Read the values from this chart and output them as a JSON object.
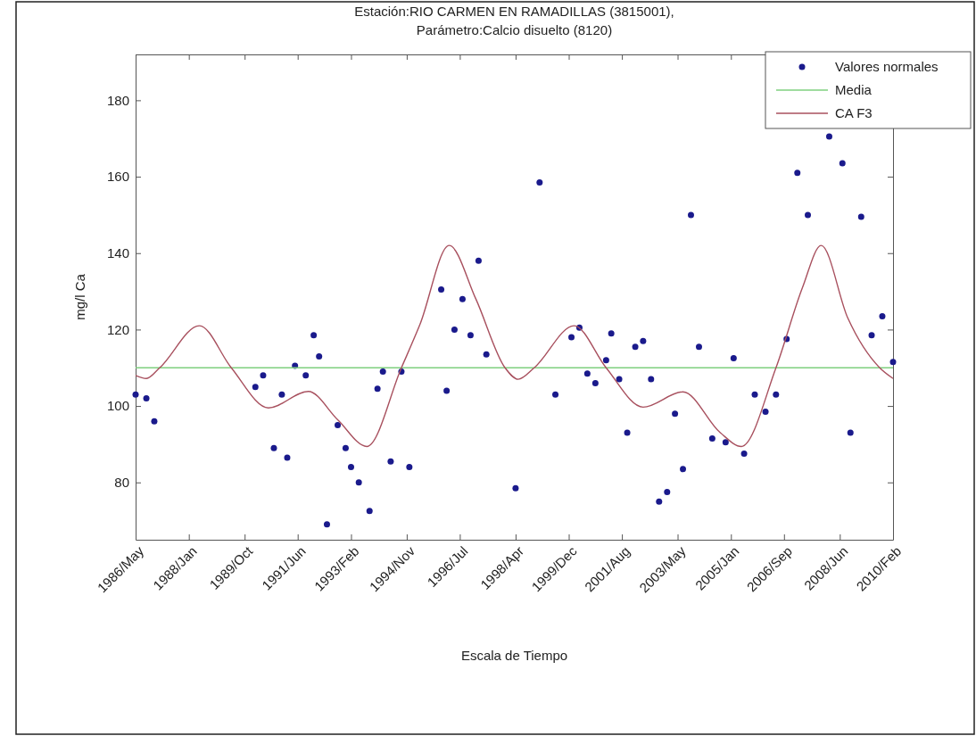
{
  "chart_data": {
    "type": "scatter",
    "title": "Estación:RIO CARMEN EN RAMADILLAS (3815001),",
    "subtitle": "Parámetro:Calcio disuelto (8120)",
    "xlabel": "Escala de Tiempo",
    "ylabel": "mg/l Ca",
    "xlim": [
      "1986-05",
      "2010-02"
    ],
    "xticks": [
      {
        "value": "1986-05",
        "label": "1986/May"
      },
      {
        "value": "1988-01",
        "label": "1988/Jan"
      },
      {
        "value": "1989-10",
        "label": "1989/Oct"
      },
      {
        "value": "1991-06",
        "label": "1991/Jun"
      },
      {
        "value": "1993-02",
        "label": "1993/Feb"
      },
      {
        "value": "1994-11",
        "label": "1994/Nov"
      },
      {
        "value": "1996-07",
        "label": "1996/Jul"
      },
      {
        "value": "1998-04",
        "label": "1998/Apr"
      },
      {
        "value": "1999-12",
        "label": "1999/Dec"
      },
      {
        "value": "2001-08",
        "label": "2001/Aug"
      },
      {
        "value": "2003-05",
        "label": "2003/May"
      },
      {
        "value": "2005-01",
        "label": "2005/Jan"
      },
      {
        "value": "2006-09",
        "label": "2006/Sep"
      },
      {
        "value": "2008-06",
        "label": "2008/Jun"
      },
      {
        "value": "2010-02",
        "label": "2010/Feb"
      }
    ],
    "ylim": [
      65,
      192
    ],
    "yticks": [
      80,
      100,
      120,
      140,
      160,
      180
    ],
    "grid": false,
    "legend": "top right",
    "series": [
      {
        "name": "Valores normales",
        "type": "scatter",
        "marker": "circle",
        "color": "#1a1a8c",
        "x": [
          "1986-05",
          "1986-09",
          "1986-12",
          "1990-02",
          "1990-05",
          "1990-09",
          "1990-12",
          "1991-02",
          "1991-05",
          "1991-09",
          "1991-12",
          "1992-02",
          "1992-05",
          "1992-09",
          "1992-12",
          "1993-02",
          "1993-05",
          "1993-09",
          "1993-12",
          "1994-02",
          "1994-05",
          "1994-09",
          "1994-12",
          "1995-12",
          "1996-02",
          "1996-05",
          "1996-08",
          "1996-11",
          "1997-02",
          "1997-05",
          "1998-04",
          "1999-01",
          "1999-07",
          "2000-01",
          "2000-04",
          "2000-07",
          "2000-10",
          "2001-02",
          "2001-04",
          "2001-07",
          "2001-10",
          "2002-01",
          "2002-04",
          "2002-07",
          "2002-10",
          "2003-01",
          "2003-04",
          "2003-07",
          "2003-10",
          "2004-01",
          "2004-06",
          "2004-11",
          "2005-02",
          "2005-06",
          "2005-10",
          "2006-02",
          "2006-06",
          "2006-10",
          "2007-02",
          "2007-06",
          "2008-02",
          "2008-07",
          "2008-10",
          "2009-02",
          "2009-06",
          "2009-10",
          "2010-02"
        ],
        "values": [
          103,
          102,
          96,
          105,
          108,
          89,
          103,
          86.5,
          110.5,
          108,
          118.5,
          113,
          69,
          95,
          89,
          84,
          80,
          72.5,
          104.5,
          109,
          85.5,
          109,
          84,
          130.5,
          104,
          120,
          128,
          118.5,
          138,
          113.5,
          78.5,
          158.5,
          103,
          118,
          120.5,
          108.5,
          106,
          112,
          119,
          107,
          93,
          115.5,
          117,
          107,
          75,
          77.5,
          98,
          83.5,
          150,
          115.5,
          91.5,
          90.5,
          112.5,
          87.5,
          103,
          98.5,
          103,
          117.5,
          161,
          150,
          170.5,
          163.5,
          93,
          149.5,
          118.5,
          123.5,
          111.5
        ]
      },
      {
        "name": "Media",
        "type": "line",
        "marker": "none",
        "line_style": "solid",
        "color": "#7fd07f",
        "x": [
          "1986-05",
          "2010-02"
        ],
        "values": [
          110,
          110
        ]
      },
      {
        "name": "CA F3",
        "type": "line",
        "marker": "none",
        "line_style": "solid",
        "color": "#a8505e",
        "x": [
          "1986-05",
          "1986-09",
          "1987-02",
          "1988-05",
          "1989-05",
          "1990-07",
          "1991-10",
          "1992-09",
          "1993-08",
          "1994-09",
          "1995-04",
          "1996-03",
          "1997-01",
          "1997-12",
          "1998-05",
          "1998-11",
          "2000-02",
          "2001-02",
          "2002-04",
          "2003-07",
          "2004-09",
          "2005-05",
          "2006-06",
          "2007-04",
          "2007-11",
          "2008-09",
          "2009-09",
          "2010-02"
        ],
        "values": [
          108,
          107.2,
          110,
          121,
          110,
          99.5,
          103.8,
          96.4,
          89.4,
          110,
          121.3,
          142,
          128,
          110,
          107,
          110,
          121,
          110,
          99.7,
          103.7,
          93,
          89.4,
          110,
          131,
          142,
          123,
          110,
          107.2
        ]
      }
    ]
  }
}
